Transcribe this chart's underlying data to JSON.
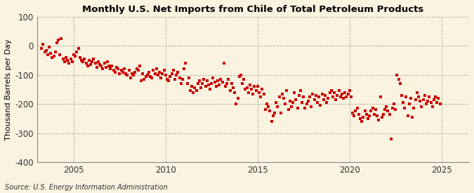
{
  "title": "Monthly U.S. Net Imports from Chile of Total Petroleum Products",
  "ylabel": "Thousand Barrels per Day",
  "source": "Source: U.S. Energy Information Administration",
  "bg_color": "#FAF3E0",
  "plot_bg_color": "#FAF3E0",
  "marker_color": "#CC0000",
  "ylim": [
    -400,
    100
  ],
  "xlim": [
    2003.0,
    2026.5
  ],
  "yticks": [
    100,
    0,
    -100,
    -200,
    -300,
    -400
  ],
  "xticks": [
    2005,
    2010,
    2015,
    2020,
    2025
  ],
  "data": [
    [
      2003.25,
      -10
    ],
    [
      2003.33,
      5
    ],
    [
      2003.42,
      -20
    ],
    [
      2003.5,
      -15
    ],
    [
      2003.58,
      -30
    ],
    [
      2003.67,
      -5
    ],
    [
      2003.75,
      -25
    ],
    [
      2003.83,
      -40
    ],
    [
      2003.92,
      -35
    ],
    [
      2004.0,
      -20
    ],
    [
      2004.08,
      10
    ],
    [
      2004.17,
      20
    ],
    [
      2004.25,
      -30
    ],
    [
      2004.33,
      25
    ],
    [
      2004.42,
      -45
    ],
    [
      2004.5,
      -55
    ],
    [
      2004.58,
      -40
    ],
    [
      2004.67,
      -50
    ],
    [
      2004.75,
      -60
    ],
    [
      2004.83,
      -45
    ],
    [
      2004.92,
      -55
    ],
    [
      2005.0,
      -30
    ],
    [
      2005.08,
      -35
    ],
    [
      2005.17,
      -20
    ],
    [
      2005.25,
      -10
    ],
    [
      2005.33,
      -40
    ],
    [
      2005.42,
      -50
    ],
    [
      2005.5,
      -55
    ],
    [
      2005.58,
      -45
    ],
    [
      2005.67,
      -60
    ],
    [
      2005.75,
      -70
    ],
    [
      2005.83,
      -50
    ],
    [
      2005.92,
      -65
    ],
    [
      2006.0,
      -55
    ],
    [
      2006.08,
      -45
    ],
    [
      2006.17,
      -60
    ],
    [
      2006.25,
      -75
    ],
    [
      2006.33,
      -55
    ],
    [
      2006.42,
      -65
    ],
    [
      2006.5,
      -70
    ],
    [
      2006.58,
      -80
    ],
    [
      2006.67,
      -60
    ],
    [
      2006.75,
      -75
    ],
    [
      2006.83,
      -55
    ],
    [
      2006.92,
      -70
    ],
    [
      2007.0,
      -80
    ],
    [
      2007.08,
      -70
    ],
    [
      2007.17,
      -85
    ],
    [
      2007.25,
      -90
    ],
    [
      2007.33,
      -75
    ],
    [
      2007.42,
      -80
    ],
    [
      2007.5,
      -95
    ],
    [
      2007.58,
      -85
    ],
    [
      2007.67,
      -90
    ],
    [
      2007.75,
      -80
    ],
    [
      2007.83,
      -95
    ],
    [
      2007.92,
      -100
    ],
    [
      2008.0,
      -85
    ],
    [
      2008.08,
      -110
    ],
    [
      2008.17,
      -95
    ],
    [
      2008.25,
      -100
    ],
    [
      2008.33,
      -90
    ],
    [
      2008.42,
      -80
    ],
    [
      2008.5,
      -85
    ],
    [
      2008.58,
      -70
    ],
    [
      2008.67,
      -120
    ],
    [
      2008.75,
      -95
    ],
    [
      2008.83,
      -115
    ],
    [
      2008.92,
      -105
    ],
    [
      2009.0,
      -100
    ],
    [
      2009.08,
      -90
    ],
    [
      2009.17,
      -105
    ],
    [
      2009.25,
      -110
    ],
    [
      2009.33,
      -85
    ],
    [
      2009.42,
      -95
    ],
    [
      2009.5,
      -80
    ],
    [
      2009.58,
      -100
    ],
    [
      2009.67,
      -90
    ],
    [
      2009.75,
      -110
    ],
    [
      2009.83,
      -95
    ],
    [
      2009.92,
      -85
    ],
    [
      2010.0,
      -100
    ],
    [
      2010.08,
      -115
    ],
    [
      2010.17,
      -120
    ],
    [
      2010.25,
      -105
    ],
    [
      2010.33,
      -95
    ],
    [
      2010.42,
      -85
    ],
    [
      2010.5,
      -115
    ],
    [
      2010.58,
      -100
    ],
    [
      2010.67,
      -90
    ],
    [
      2010.75,
      -110
    ],
    [
      2010.83,
      -130
    ],
    [
      2010.92,
      -115
    ],
    [
      2011.0,
      -80
    ],
    [
      2011.08,
      -60
    ],
    [
      2011.17,
      -130
    ],
    [
      2011.25,
      -110
    ],
    [
      2011.33,
      -155
    ],
    [
      2011.42,
      -140
    ],
    [
      2011.5,
      -160
    ],
    [
      2011.58,
      -145
    ],
    [
      2011.67,
      -155
    ],
    [
      2011.75,
      -130
    ],
    [
      2011.83,
      -120
    ],
    [
      2011.92,
      -145
    ],
    [
      2012.0,
      -130
    ],
    [
      2012.08,
      -115
    ],
    [
      2012.17,
      -140
    ],
    [
      2012.25,
      -120
    ],
    [
      2012.33,
      -135
    ],
    [
      2012.42,
      -150
    ],
    [
      2012.5,
      -130
    ],
    [
      2012.58,
      -110
    ],
    [
      2012.67,
      -125
    ],
    [
      2012.75,
      -140
    ],
    [
      2012.83,
      -120
    ],
    [
      2012.92,
      -135
    ],
    [
      2013.0,
      -115
    ],
    [
      2013.08,
      -125
    ],
    [
      2013.17,
      -60
    ],
    [
      2013.25,
      -140
    ],
    [
      2013.33,
      -130
    ],
    [
      2013.42,
      -115
    ],
    [
      2013.5,
      -155
    ],
    [
      2013.58,
      -130
    ],
    [
      2013.67,
      -145
    ],
    [
      2013.75,
      -160
    ],
    [
      2013.83,
      -200
    ],
    [
      2013.92,
      -180
    ],
    [
      2014.0,
      -105
    ],
    [
      2014.08,
      -100
    ],
    [
      2014.17,
      -130
    ],
    [
      2014.25,
      -115
    ],
    [
      2014.33,
      -150
    ],
    [
      2014.42,
      -145
    ],
    [
      2014.5,
      -160
    ],
    [
      2014.58,
      -135
    ],
    [
      2014.67,
      -150
    ],
    [
      2014.75,
      -165
    ],
    [
      2014.83,
      -140
    ],
    [
      2014.92,
      -155
    ],
    [
      2015.0,
      -140
    ],
    [
      2015.08,
      -160
    ],
    [
      2015.17,
      -175
    ],
    [
      2015.25,
      -150
    ],
    [
      2015.33,
      -165
    ],
    [
      2015.42,
      -220
    ],
    [
      2015.5,
      -200
    ],
    [
      2015.58,
      -210
    ],
    [
      2015.67,
      -225
    ],
    [
      2015.75,
      -260
    ],
    [
      2015.83,
      -240
    ],
    [
      2015.92,
      -230
    ],
    [
      2016.0,
      -195
    ],
    [
      2016.08,
      -210
    ],
    [
      2016.17,
      -175
    ],
    [
      2016.25,
      -230
    ],
    [
      2016.33,
      -165
    ],
    [
      2016.42,
      -180
    ],
    [
      2016.5,
      -200
    ],
    [
      2016.58,
      -155
    ],
    [
      2016.67,
      -220
    ],
    [
      2016.75,
      -190
    ],
    [
      2016.83,
      -210
    ],
    [
      2016.92,
      -195
    ],
    [
      2017.0,
      -160
    ],
    [
      2017.08,
      -185
    ],
    [
      2017.17,
      -215
    ],
    [
      2017.25,
      -170
    ],
    [
      2017.33,
      -155
    ],
    [
      2017.42,
      -195
    ],
    [
      2017.5,
      -175
    ],
    [
      2017.58,
      -215
    ],
    [
      2017.67,
      -200
    ],
    [
      2017.75,
      -190
    ],
    [
      2017.83,
      -175
    ],
    [
      2017.92,
      -210
    ],
    [
      2018.0,
      -165
    ],
    [
      2018.08,
      -185
    ],
    [
      2018.17,
      -170
    ],
    [
      2018.25,
      -195
    ],
    [
      2018.33,
      -175
    ],
    [
      2018.42,
      -205
    ],
    [
      2018.5,
      -165
    ],
    [
      2018.58,
      -185
    ],
    [
      2018.67,
      -170
    ],
    [
      2018.75,
      -195
    ],
    [
      2018.83,
      -180
    ],
    [
      2018.92,
      -160
    ],
    [
      2019.0,
      -155
    ],
    [
      2019.08,
      -175
    ],
    [
      2019.17,
      -160
    ],
    [
      2019.25,
      -185
    ],
    [
      2019.33,
      -170
    ],
    [
      2019.42,
      -155
    ],
    [
      2019.5,
      -175
    ],
    [
      2019.58,
      -165
    ],
    [
      2019.67,
      -180
    ],
    [
      2019.75,
      -160
    ],
    [
      2019.83,
      -175
    ],
    [
      2019.92,
      -165
    ],
    [
      2020.0,
      -155
    ],
    [
      2020.08,
      -175
    ],
    [
      2020.17,
      -230
    ],
    [
      2020.25,
      -240
    ],
    [
      2020.33,
      -225
    ],
    [
      2020.42,
      -215
    ],
    [
      2020.5,
      -235
    ],
    [
      2020.58,
      -250
    ],
    [
      2020.67,
      -260
    ],
    [
      2020.75,
      -245
    ],
    [
      2020.83,
      -225
    ],
    [
      2020.92,
      -235
    ],
    [
      2021.0,
      -250
    ],
    [
      2021.08,
      -240
    ],
    [
      2021.17,
      -225
    ],
    [
      2021.25,
      -215
    ],
    [
      2021.33,
      -235
    ],
    [
      2021.42,
      -220
    ],
    [
      2021.5,
      -240
    ],
    [
      2021.58,
      -255
    ],
    [
      2021.67,
      -175
    ],
    [
      2021.75,
      -245
    ],
    [
      2021.83,
      -235
    ],
    [
      2021.92,
      -220
    ],
    [
      2022.0,
      -210
    ],
    [
      2022.08,
      -225
    ],
    [
      2022.17,
      -235
    ],
    [
      2022.25,
      -320
    ],
    [
      2022.33,
      -215
    ],
    [
      2022.42,
      -200
    ],
    [
      2022.5,
      -220
    ],
    [
      2022.58,
      -100
    ],
    [
      2022.67,
      -115
    ],
    [
      2022.75,
      -130
    ],
    [
      2022.83,
      -170
    ],
    [
      2022.92,
      -195
    ],
    [
      2023.0,
      -215
    ],
    [
      2023.08,
      -175
    ],
    [
      2023.17,
      -240
    ],
    [
      2023.25,
      -200
    ],
    [
      2023.33,
      -180
    ],
    [
      2023.42,
      -245
    ],
    [
      2023.5,
      -215
    ],
    [
      2023.58,
      -185
    ],
    [
      2023.67,
      -160
    ],
    [
      2023.75,
      -175
    ],
    [
      2023.83,
      -190
    ],
    [
      2023.92,
      -210
    ],
    [
      2024.0,
      -185
    ],
    [
      2024.08,
      -170
    ],
    [
      2024.17,
      -200
    ],
    [
      2024.25,
      -190
    ],
    [
      2024.33,
      -175
    ],
    [
      2024.42,
      -195
    ],
    [
      2024.5,
      -210
    ],
    [
      2024.58,
      -185
    ],
    [
      2024.67,
      -175
    ],
    [
      2024.75,
      -195
    ],
    [
      2024.83,
      -180
    ],
    [
      2024.92,
      -200
    ]
  ]
}
